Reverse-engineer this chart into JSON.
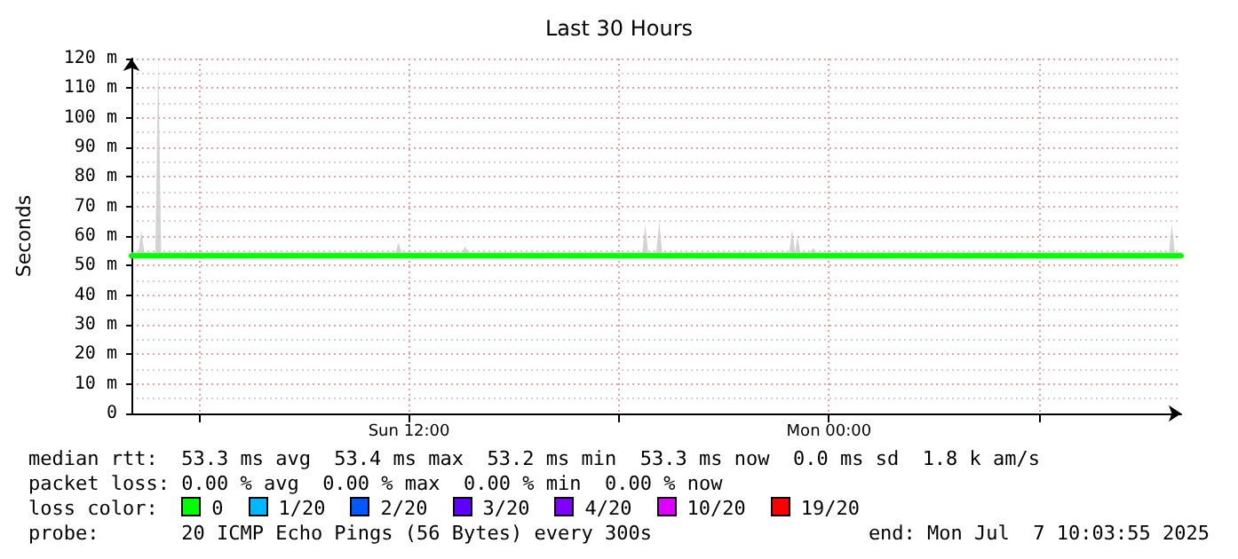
{
  "chart_data": {
    "type": "line",
    "title": "Last 30 Hours",
    "ylabel": "Seconds",
    "legend_title": "loss color:",
    "legend": "bottom",
    "grid": true,
    "marker": "none",
    "line_style": "solid",
    "xlim": [
      "2025-07-06T04:04",
      "2025-07-07T10:04"
    ],
    "xticks": [
      {
        "value": "2025-07-06T06:00",
        "label": null
      },
      {
        "value": "2025-07-06T12:00",
        "label": "Sun 12:00"
      },
      {
        "value": "2025-07-06T18:00",
        "label": null
      },
      {
        "value": "2025-07-07T00:00",
        "label": "Mon 00:00"
      },
      {
        "value": "2025-07-07T06:00",
        "label": null
      }
    ],
    "ylim": [
      0,
      120
    ],
    "yticks": [
      0,
      {
        "value": 10,
        "label": "10 m"
      },
      {
        "value": 20,
        "label": "20 m"
      },
      {
        "value": 30,
        "label": "30 m"
      },
      {
        "value": 40,
        "label": "40 m"
      },
      {
        "value": 50,
        "label": "50 m"
      },
      {
        "value": 60,
        "label": "60 m"
      },
      {
        "value": 70,
        "label": "70 m"
      },
      {
        "value": 80,
        "label": "80 m"
      },
      {
        "value": 90,
        "label": "90 m"
      },
      {
        "value": 100,
        "label": "100 m"
      },
      {
        "value": 110,
        "label": "110 m"
      },
      {
        "value": 120,
        "label": "120 m"
      }
    ],
    "x": [
      "2025-07-06T04:04",
      "2025-07-06T04:16",
      "2025-07-06T04:21",
      "2025-07-06T04:26",
      "2025-07-06T04:45",
      "2025-07-06T04:50",
      "2025-07-06T04:55",
      "2025-07-06T11:37",
      "2025-07-06T11:42",
      "2025-07-06T11:47",
      "2025-07-06T13:31",
      "2025-07-06T13:36",
      "2025-07-06T13:41",
      "2025-07-06T18:40",
      "2025-07-06T18:45",
      "2025-07-06T18:50",
      "2025-07-06T19:04",
      "2025-07-06T19:09",
      "2025-07-06T19:14",
      "2025-07-06T22:52",
      "2025-07-06T22:57",
      "2025-07-06T23:02",
      "2025-07-06T23:06",
      "2025-07-06T23:11",
      "2025-07-06T23:28",
      "2025-07-06T23:33",
      "2025-07-06T23:38",
      "2025-07-07T09:43",
      "2025-07-07T09:48",
      "2025-07-07T09:53",
      "2025-07-07T10:04"
    ],
    "series": [
      {
        "name": "0",
        "color": "#00ff00",
        "values": [
          53.3,
          53.3,
          53.3,
          53.3,
          53.3,
          53.3,
          53.3,
          53.3,
          53.3,
          53.3,
          53.3,
          53.3,
          53.3,
          53.3,
          53.3,
          53.3,
          53.3,
          53.3,
          53.3,
          53.3,
          53.3,
          53.3,
          53.3,
          53.3,
          53.3,
          53.3,
          53.3,
          53.3,
          53.3,
          53.3,
          53.3
        ],
        "lower": [
          53,
          53,
          53,
          53,
          53,
          53,
          53,
          53,
          53,
          53,
          53,
          53,
          53,
          53,
          53,
          53,
          53,
          53,
          53,
          53,
          53,
          53,
          53,
          53,
          53,
          53,
          53,
          53,
          53,
          53,
          53
        ],
        "upper": [
          54.5,
          54.5,
          62,
          54.5,
          54.5,
          120,
          54.5,
          54.5,
          58,
          54.5,
          54.5,
          56.5,
          54.5,
          54.5,
          64,
          54.5,
          54.5,
          65,
          54.5,
          54.5,
          62,
          54.5,
          60,
          54.5,
          54.5,
          56,
          54.5,
          54.5,
          64,
          54.5,
          54.5
        ]
      },
      {
        "name": "1/20",
        "color": "#00b8ff",
        "values": [
          null,
          null,
          null,
          null,
          null,
          null,
          null,
          null,
          null,
          null,
          null,
          null,
          null,
          null,
          null,
          null,
          null,
          null,
          null,
          null,
          null,
          null,
          null,
          null,
          null,
          null,
          null,
          null,
          null,
          null,
          null
        ]
      },
      {
        "name": "2/20",
        "color": "#0059ff",
        "values": [
          null,
          null,
          null,
          null,
          null,
          null,
          null,
          null,
          null,
          null,
          null,
          null,
          null,
          null,
          null,
          null,
          null,
          null,
          null,
          null,
          null,
          null,
          null,
          null,
          null,
          null,
          null,
          null,
          null,
          null,
          null
        ]
      },
      {
        "name": "3/20",
        "color": "#5e00ff",
        "values": [
          null,
          null,
          null,
          null,
          null,
          null,
          null,
          null,
          null,
          null,
          null,
          null,
          null,
          null,
          null,
          null,
          null,
          null,
          null,
          null,
          null,
          null,
          null,
          null,
          null,
          null,
          null,
          null,
          null,
          null,
          null
        ]
      },
      {
        "name": "4/20",
        "color": "#7e00ff",
        "values": [
          null,
          null,
          null,
          null,
          null,
          null,
          null,
          null,
          null,
          null,
          null,
          null,
          null,
          null,
          null,
          null,
          null,
          null,
          null,
          null,
          null,
          null,
          null,
          null,
          null,
          null,
          null,
          null,
          null,
          null,
          null
        ]
      },
      {
        "name": "10/20",
        "color": "#dd00ff",
        "values": [
          null,
          null,
          null,
          null,
          null,
          null,
          null,
          null,
          null,
          null,
          null,
          null,
          null,
          null,
          null,
          null,
          null,
          null,
          null,
          null,
          null,
          null,
          null,
          null,
          null,
          null,
          null,
          null,
          null,
          null,
          null
        ]
      },
      {
        "name": "19/20",
        "color": "#ff0000",
        "values": [
          null,
          null,
          null,
          null,
          null,
          null,
          null,
          null,
          null,
          null,
          null,
          null,
          null,
          null,
          null,
          null,
          null,
          null,
          null,
          null,
          null,
          null,
          null,
          null,
          null,
          null,
          null,
          null,
          null,
          null,
          null
        ]
      }
    ],
    "annotations": [
      "median rtt:  53.3 ms avg  53.4 ms max  53.2 ms min  53.3 ms now  0.0 ms sd  1.8 k am/s",
      "packet loss: 0.00 % avg  0.00 % max  0.00 % min  0.00 % now",
      "probe:       20 ICMP Echo Pings (56 Bytes) every 300s",
      "end: Mon Jul  7 10:03:55 2025"
    ]
  }
}
